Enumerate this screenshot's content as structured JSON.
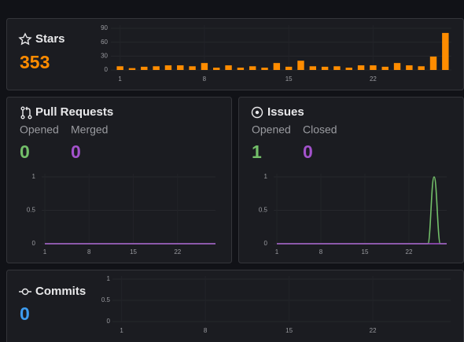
{
  "chart_data": [
    {
      "type": "bar",
      "title": "Stars",
      "stats": [
        {
          "value": 353,
          "color": "#ff8c00"
        }
      ],
      "x": [
        1,
        2,
        3,
        4,
        5,
        6,
        7,
        8,
        9,
        10,
        11,
        12,
        13,
        14,
        15,
        16,
        17,
        18,
        19,
        20,
        21,
        22,
        23,
        24,
        25,
        26,
        27,
        28
      ],
      "values": [
        8,
        4,
        7,
        8,
        10,
        10,
        8,
        15,
        5,
        10,
        5,
        8,
        5,
        15,
        7,
        20,
        8,
        7,
        8,
        5,
        10,
        10,
        7,
        15,
        10,
        8,
        29,
        80
      ],
      "color": "#ff8c00",
      "xlim": [
        0.5,
        28.5
      ],
      "xticks": [
        1,
        8,
        15,
        22
      ],
      "ylim": [
        0,
        90
      ],
      "yticks": [
        0,
        30,
        60,
        90
      ],
      "grid": true
    },
    {
      "type": "line",
      "title": "Pull Requests",
      "x": [
        1,
        2,
        3,
        4,
        5,
        6,
        7,
        8,
        9,
        10,
        11,
        12,
        13,
        14,
        15,
        16,
        17,
        18,
        19,
        20,
        21,
        22,
        23,
        24,
        25,
        26,
        27,
        28
      ],
      "series": [
        {
          "name": "Opened",
          "color": "#73bf69",
          "values": [
            0,
            0,
            0,
            0,
            0,
            0,
            0,
            0,
            0,
            0,
            0,
            0,
            0,
            0,
            0,
            0,
            0,
            0,
            0,
            0,
            0,
            0,
            0,
            0,
            0,
            0,
            0,
            0
          ],
          "total": 0
        },
        {
          "name": "Merged",
          "color": "#a352cc",
          "values": [
            0,
            0,
            0,
            0,
            0,
            0,
            0,
            0,
            0,
            0,
            0,
            0,
            0,
            0,
            0,
            0,
            0,
            0,
            0,
            0,
            0,
            0,
            0,
            0,
            0,
            0,
            0,
            0
          ],
          "total": 0
        }
      ],
      "xlim": [
        1,
        28
      ],
      "xticks": [
        1,
        8,
        15,
        22
      ],
      "ylim": [
        0,
        1
      ],
      "yticks": [
        0,
        0.5,
        1
      ],
      "grid": true
    },
    {
      "type": "line",
      "title": "Issues",
      "x": [
        1,
        2,
        3,
        4,
        5,
        6,
        7,
        8,
        9,
        10,
        11,
        12,
        13,
        14,
        15,
        16,
        17,
        18,
        19,
        20,
        21,
        22,
        23,
        24,
        25,
        26,
        27,
        28
      ],
      "series": [
        {
          "name": "Opened",
          "color": "#73bf69",
          "values": [
            0,
            0,
            0,
            0,
            0,
            0,
            0,
            0,
            0,
            0,
            0,
            0,
            0,
            0,
            0,
            0,
            0,
            0,
            0,
            0,
            0,
            0,
            0,
            0,
            0,
            1,
            0,
            0
          ],
          "total": 1
        },
        {
          "name": "Closed",
          "color": "#a352cc",
          "values": [
            0,
            0,
            0,
            0,
            0,
            0,
            0,
            0,
            0,
            0,
            0,
            0,
            0,
            0,
            0,
            0,
            0,
            0,
            0,
            0,
            0,
            0,
            0,
            0,
            0,
            0,
            0,
            0
          ],
          "total": 0
        }
      ],
      "xlim": [
        1,
        28
      ],
      "xticks": [
        1,
        8,
        15,
        22
      ],
      "ylim": [
        0,
        1
      ],
      "yticks": [
        0,
        0.5,
        1
      ],
      "grid": true
    },
    {
      "type": "empty",
      "title": "Commits",
      "stats": [
        {
          "value": 0,
          "color": "#3d9cf0"
        }
      ],
      "xlim": [
        0.5,
        28.5
      ],
      "xticks": [
        1,
        8,
        15,
        22
      ],
      "ylim": [
        0,
        1
      ],
      "yticks": [
        0,
        0.5,
        1
      ],
      "grid": true
    }
  ]
}
